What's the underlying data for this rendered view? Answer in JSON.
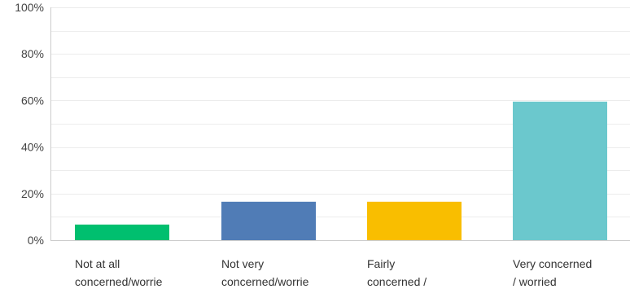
{
  "chart_data": {
    "type": "bar",
    "title": "",
    "xlabel": "",
    "ylabel": "",
    "ylim": [
      0,
      100
    ],
    "y_ticks": [
      0,
      20,
      40,
      60,
      80,
      100
    ],
    "y_tick_labels": [
      "0%",
      "20%",
      "40%",
      "60%",
      "80%",
      "100%"
    ],
    "grid": true,
    "grid_minor_step": 10,
    "legend": "none",
    "categories": [
      "Not at all concerned/worrie",
      "Not very concerned/worrie",
      "Fairly concerned /",
      "Very concerned / worried"
    ],
    "category_label_lines": [
      [
        "Not at all",
        "concerned/worrie"
      ],
      [
        "Not very",
        "concerned/worrie"
      ],
      [
        "Fairly",
        "concerned /"
      ],
      [
        "Very concerned",
        "/ worried"
      ]
    ],
    "values": [
      6.7,
      16.5,
      16.5,
      59.5
    ],
    "colors": [
      "#00bf6f",
      "#507cb6",
      "#f9be00",
      "#6bc8cd"
    ],
    "axis_color": "#cccccc",
    "grid_color": "#ececec"
  }
}
